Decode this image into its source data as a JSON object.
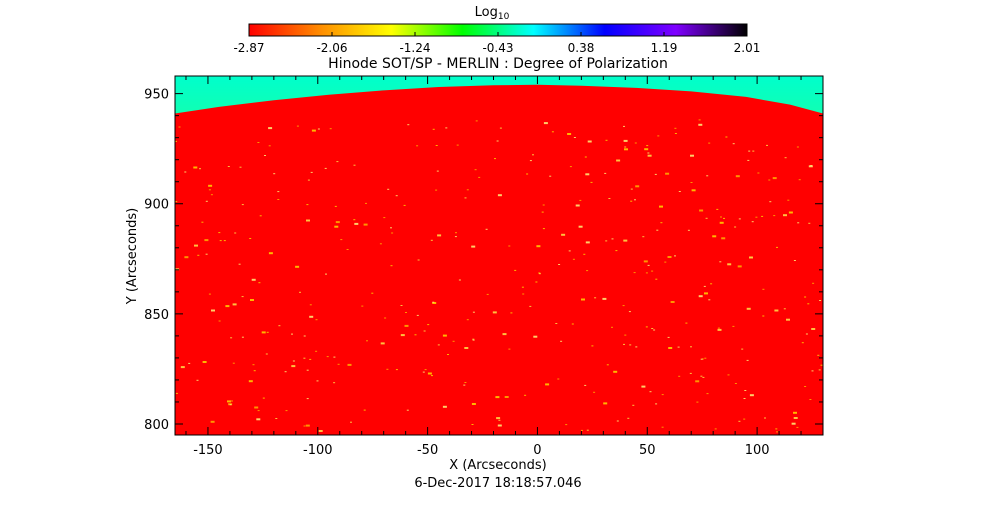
{
  "chart_data": {
    "type": "heatmap",
    "title": "Hinode SOT/SP - MERLIN : Degree of Polarization",
    "xlabel": "X (Arcseconds)",
    "ylabel": "Y (Arcseconds)",
    "timestamp": "6-Dec-2017 18:18:57.046",
    "xlim": [
      -165,
      130
    ],
    "ylim": [
      795,
      958
    ],
    "x_ticks": [
      -150,
      -100,
      -50,
      0,
      50,
      100
    ],
    "y_ticks": [
      800,
      850,
      900,
      950
    ],
    "colorbar": {
      "label_base": "Log",
      "label_sub": "10",
      "min": -2.87,
      "max": 2.01,
      "tick_labels": [
        "-2.87",
        "-2.06",
        "-1.24",
        "-0.43",
        "0.38",
        "1.19",
        "2.01"
      ],
      "colors": [
        "#ff0000",
        "#ff8c00",
        "#ffff00",
        "#00ff00",
        "#00ffff",
        "#0000ff",
        "#7f00ff",
        "#000000"
      ]
    },
    "limb_y": [
      941,
      944,
      947,
      949.5,
      951.5,
      953,
      953.8,
      954,
      953.6,
      952.6,
      951,
      948.5,
      945,
      941
    ],
    "limb_x": [
      -165,
      -145,
      -120,
      -95,
      -70,
      -45,
      -20,
      0,
      20,
      45,
      70,
      95,
      115,
      130
    ],
    "disk_color": "#ff0000",
    "offdisk_colors": [
      "#d2ff1e",
      "#4dff55",
      "#00ffcc"
    ],
    "grid": false
  }
}
